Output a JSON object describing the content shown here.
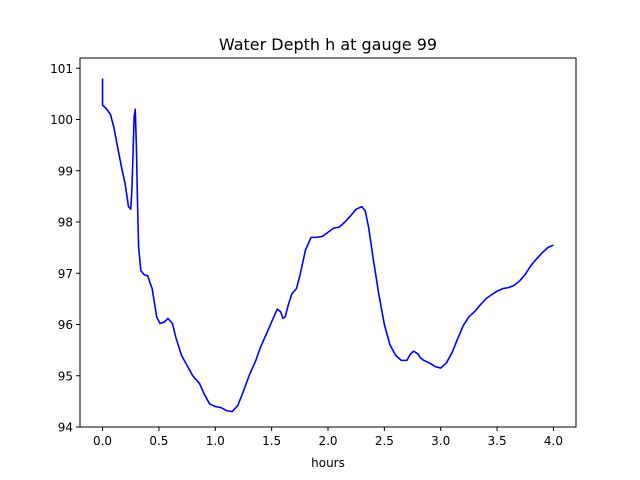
{
  "chart_data": {
    "type": "line",
    "title": "Water Depth h at gauge 99",
    "xlabel": "hours",
    "ylabel": "",
    "xlim": [
      -0.2,
      4.2
    ],
    "ylim": [
      94,
      101.2
    ],
    "grid": false,
    "colors": {
      "series": "#0000ff",
      "axes": "#000000",
      "background": "#ffffff"
    },
    "x_ticks": [
      0.0,
      0.5,
      1.0,
      1.5,
      2.0,
      2.5,
      3.0,
      3.5,
      4.0
    ],
    "x_tick_labels": [
      "0.0",
      "0.5",
      "1.0",
      "1.5",
      "2.0",
      "2.5",
      "3.0",
      "3.5",
      "4.0"
    ],
    "y_ticks": [
      94,
      95,
      96,
      97,
      98,
      99,
      100,
      101
    ],
    "y_tick_labels": [
      "94",
      "95",
      "96",
      "97",
      "98",
      "99",
      "100",
      "101"
    ],
    "series": [
      {
        "x": [
          0.0,
          0.0,
          0.0,
          0.03,
          0.07,
          0.1,
          0.13,
          0.17,
          0.2,
          0.23,
          0.25,
          0.26,
          0.27,
          0.28,
          0.29,
          0.3,
          0.31,
          0.32,
          0.34,
          0.37,
          0.4,
          0.44,
          0.48,
          0.51,
          0.55,
          0.58,
          0.62,
          0.65,
          0.7,
          0.75,
          0.8,
          0.86,
          0.9,
          0.95,
          1.0,
          1.05,
          1.1,
          1.15,
          1.2,
          1.25,
          1.3,
          1.36,
          1.4,
          1.45,
          1.5,
          1.55,
          1.58,
          1.6,
          1.62,
          1.65,
          1.68,
          1.72,
          1.75,
          1.8,
          1.85,
          1.9,
          1.95,
          2.0,
          2.05,
          2.1,
          2.15,
          2.2,
          2.25,
          2.3,
          2.33,
          2.36,
          2.4,
          2.45,
          2.5,
          2.55,
          2.6,
          2.65,
          2.7,
          2.73,
          2.76,
          2.8,
          2.82,
          2.85,
          2.9,
          2.95,
          3.0,
          3.05,
          3.1,
          3.15,
          3.2,
          3.25,
          3.3,
          3.35,
          3.4,
          3.45,
          3.5,
          3.55,
          3.6,
          3.65,
          3.7,
          3.75,
          3.8,
          3.85,
          3.9,
          3.95,
          4.0
        ],
        "y": [
          100.8,
          100.55,
          100.28,
          100.22,
          100.1,
          99.85,
          99.5,
          99.05,
          98.75,
          98.3,
          98.25,
          98.6,
          99.3,
          100.05,
          100.2,
          99.5,
          98.4,
          97.5,
          97.05,
          96.97,
          96.95,
          96.7,
          96.15,
          96.02,
          96.05,
          96.12,
          96.02,
          95.75,
          95.4,
          95.2,
          95.0,
          94.85,
          94.65,
          94.45,
          94.4,
          94.38,
          94.32,
          94.3,
          94.42,
          94.7,
          95.0,
          95.3,
          95.55,
          95.8,
          96.05,
          96.3,
          96.25,
          96.12,
          96.15,
          96.4,
          96.6,
          96.7,
          96.95,
          97.45,
          97.7,
          97.7,
          97.72,
          97.8,
          97.88,
          97.9,
          98.0,
          98.12,
          98.25,
          98.3,
          98.22,
          97.9,
          97.3,
          96.6,
          96.0,
          95.6,
          95.4,
          95.3,
          95.3,
          95.42,
          95.48,
          95.42,
          95.35,
          95.3,
          95.25,
          95.18,
          95.15,
          95.25,
          95.45,
          95.72,
          95.98,
          96.15,
          96.25,
          96.38,
          96.5,
          96.58,
          96.65,
          96.7,
          96.72,
          96.76,
          96.85,
          96.98,
          97.15,
          97.28,
          97.4,
          97.5,
          97.55
        ]
      }
    ]
  }
}
